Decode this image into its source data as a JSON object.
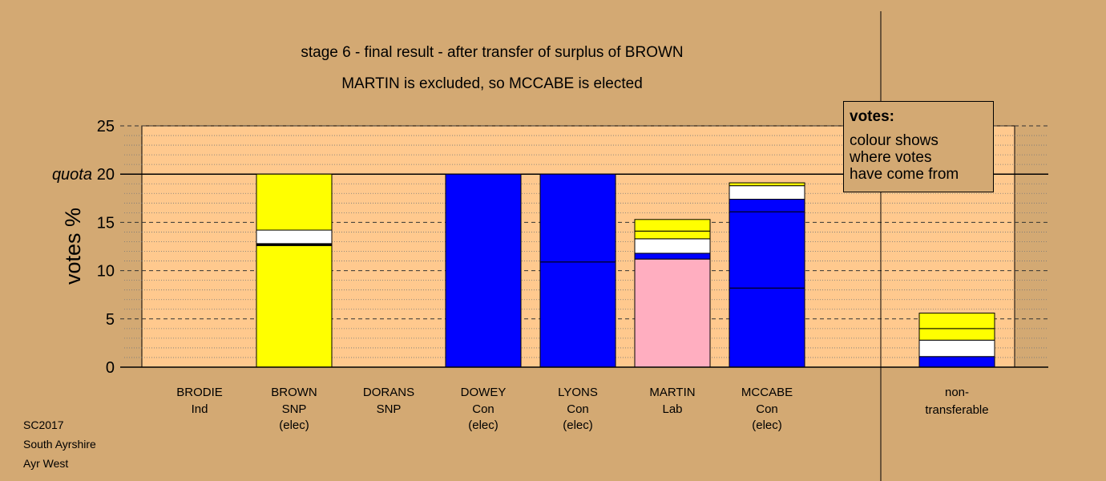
{
  "chart_data": {
    "type": "bar",
    "title": "stage 6 - final result - after transfer of surplus of BROWN",
    "subtitle": "MARTIN is excluded, so MCCABE is elected",
    "ylabel": "votes %",
    "ylim": [
      0,
      25
    ],
    "yticks": [
      "0",
      "5",
      "10",
      "15",
      "20",
      "25"
    ],
    "quota": {
      "label": "quota",
      "value": 20
    },
    "colors": {
      "SNP": "#ffff00",
      "Con": "#0000ff",
      "Lab": "#ffaec0",
      "other": "#ffffff",
      "background": "#d3a973",
      "plot": "#ffc98e"
    },
    "candidates": [
      {
        "name": "BRODIE",
        "party": "Ind",
        "note": "",
        "segments": []
      },
      {
        "name": "BROWN",
        "party": "SNP",
        "note": "(elec)",
        "segments": [
          {
            "value": 12.6,
            "color": "#ffff00"
          },
          {
            "value": 0.2,
            "color": "#000000"
          },
          {
            "value": 1.4,
            "color": "#ffffff"
          },
          {
            "value": 5.8,
            "color": "#ffff00"
          }
        ]
      },
      {
        "name": "DORANS",
        "party": "SNP",
        "note": "",
        "segments": []
      },
      {
        "name": "DOWEY",
        "party": "Con",
        "note": "(elec)",
        "segments": [
          {
            "value": 20.0,
            "color": "#0000ff"
          }
        ]
      },
      {
        "name": "LYONS",
        "party": "Con",
        "note": "(elec)",
        "segments": [
          {
            "value": 10.9,
            "color": "#0000ff"
          },
          {
            "value": 9.1,
            "color": "#0000ff"
          }
        ]
      },
      {
        "name": "MARTIN",
        "party": "Lab",
        "note": "",
        "segments": [
          {
            "value": 11.2,
            "color": "#ffaec0"
          },
          {
            "value": 0.6,
            "color": "#0000ff"
          },
          {
            "value": 1.5,
            "color": "#ffffff"
          },
          {
            "value": 0.8,
            "color": "#ffff00"
          },
          {
            "value": 1.2,
            "color": "#ffff00"
          }
        ]
      },
      {
        "name": "MCCABE",
        "party": "Con",
        "note": "(elec)",
        "segments": [
          {
            "value": 8.2,
            "color": "#0000ff"
          },
          {
            "value": 7.9,
            "color": "#0000ff"
          },
          {
            "value": 1.3,
            "color": "#0000ff"
          },
          {
            "value": 1.4,
            "color": "#ffffff"
          },
          {
            "value": 0.3,
            "color": "#ffff00"
          }
        ]
      }
    ],
    "nontransferable": {
      "label1": "non-",
      "label2": "transferable",
      "segments": [
        {
          "value": 1.1,
          "color": "#0000ff"
        },
        {
          "value": 1.7,
          "color": "#ffffff"
        },
        {
          "value": 1.2,
          "color": "#ffff00"
        },
        {
          "value": 1.6,
          "color": "#ffff00"
        }
      ]
    }
  },
  "legend": {
    "title": "votes:",
    "lines": [
      "colour shows",
      "where votes",
      "have come from"
    ]
  },
  "footer": [
    "SC2017",
    "South Ayrshire",
    "Ayr West"
  ]
}
